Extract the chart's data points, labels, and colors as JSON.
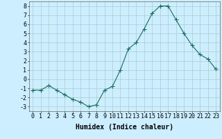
{
  "x": [
    0,
    1,
    2,
    3,
    4,
    5,
    6,
    7,
    8,
    9,
    10,
    11,
    12,
    13,
    14,
    15,
    16,
    17,
    18,
    19,
    20,
    21,
    22,
    23
  ],
  "y": [
    -1.2,
    -1.2,
    -0.7,
    -1.2,
    -1.7,
    -2.2,
    -2.5,
    -3.0,
    -2.8,
    -1.2,
    -0.8,
    1.0,
    3.3,
    4.0,
    5.5,
    7.2,
    8.0,
    8.0,
    6.5,
    5.0,
    3.7,
    2.7,
    2.2,
    1.1
  ],
  "xlabel": "Humidex (Indice chaleur)",
  "ylim": [
    -3.5,
    8.5
  ],
  "xlim": [
    -0.5,
    23.5
  ],
  "yticks": [
    -3,
    -2,
    -1,
    0,
    1,
    2,
    3,
    4,
    5,
    6,
    7,
    8
  ],
  "xticks": [
    0,
    1,
    2,
    3,
    4,
    5,
    6,
    7,
    8,
    9,
    10,
    11,
    12,
    13,
    14,
    15,
    16,
    17,
    18,
    19,
    20,
    21,
    22,
    23
  ],
  "line_color": "#1a6b5e",
  "marker": "+",
  "bg_color": "#cceeff",
  "grid_color": "#aacccc",
  "xlabel_fontsize": 7,
  "tick_fontsize": 6,
  "marker_size": 4,
  "lw": 0.8
}
